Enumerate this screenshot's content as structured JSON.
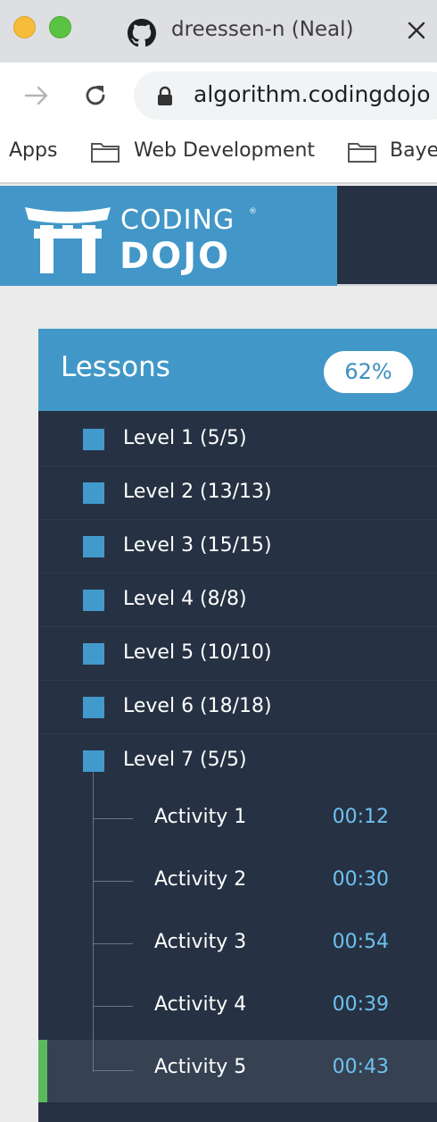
{
  "browser": {
    "tab_title": "dreessen-n (Neal)",
    "url": "algorithm.codingdojo",
    "bookmarks": [
      "Apps",
      "Web Development",
      "Baye"
    ]
  },
  "site": {
    "logo_top": "CODING",
    "logo_bottom": "DOJO",
    "logo_reg": "®"
  },
  "lessons": {
    "title": "Lessons",
    "progress_label": "62%",
    "progress": 0.62,
    "levels": [
      "Level 1 (5/5)",
      "Level 2 (13/13)",
      "Level 3 (15/15)",
      "Level 4 (8/8)",
      "Level 5 (10/10)",
      "Level 6 (18/18)",
      "Level 7 (5/5)"
    ],
    "activities": [
      {
        "label": "Activity 1",
        "time": "00:12"
      },
      {
        "label": "Activity 2",
        "time": "00:30"
      },
      {
        "label": "Activity 3",
        "time": "00:54"
      },
      {
        "label": "Activity 4",
        "time": "00:39"
      },
      {
        "label": "Activity 5",
        "time": "00:43"
      }
    ],
    "active_activity": "Activity 5"
  },
  "colors": {
    "accent_blue": "#4299cc",
    "panel_dark": "#263243",
    "time_blue": "#6ec1ef",
    "active_green": "#5cb85c"
  }
}
